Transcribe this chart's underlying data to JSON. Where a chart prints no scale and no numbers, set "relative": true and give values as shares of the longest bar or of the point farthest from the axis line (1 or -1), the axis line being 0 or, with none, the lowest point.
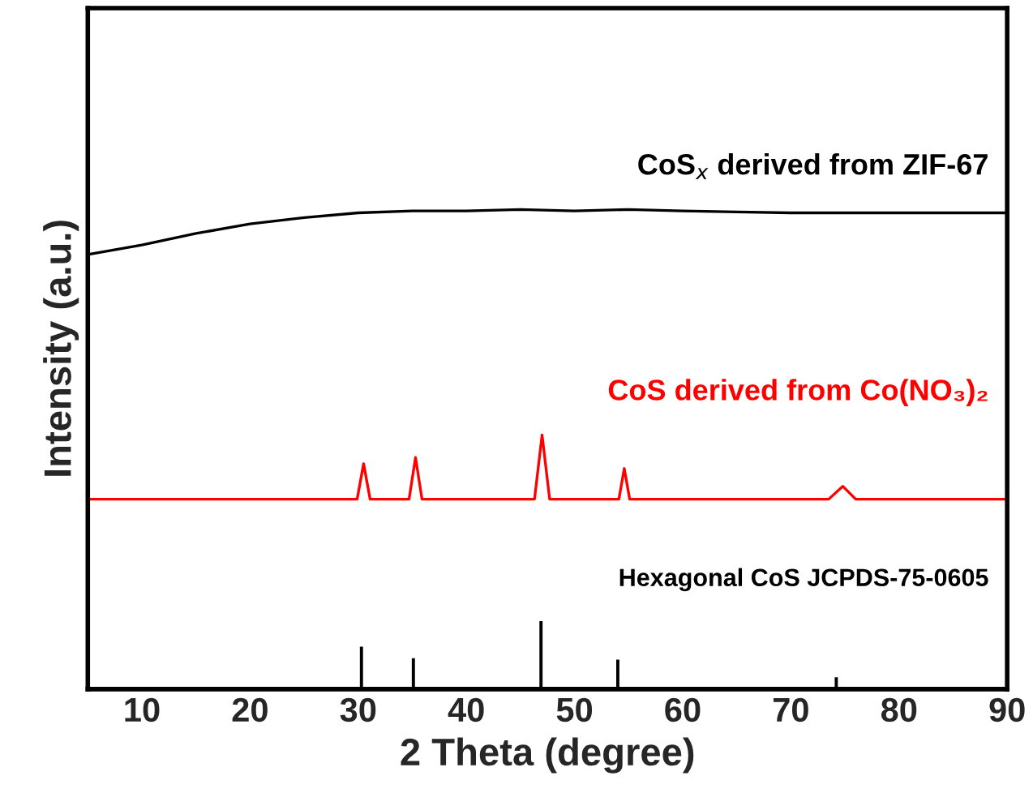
{
  "chart_data": {
    "type": "line",
    "relative": true,
    "xlabel": "2 Theta (degree)",
    "ylabel": "Intensity (a.u.)",
    "xlim": [
      5,
      90
    ],
    "xticks": [
      10,
      20,
      30,
      40,
      50,
      60,
      70,
      80,
      90
    ],
    "legend": false,
    "grid": false,
    "series": [
      {
        "name": "CoS$_{x}$ derived from ZIF-67",
        "color": "#000000",
        "x": [
          5,
          10,
          15,
          20,
          25,
          30,
          35,
          40,
          45,
          50,
          55,
          60,
          65,
          70,
          75,
          80,
          85,
          90
        ],
        "values": [
          0.906,
          0.926,
          0.95,
          0.97,
          0.983,
          0.993,
          0.997,
          0.997,
          1,
          0.997,
          1,
          0.997,
          0.995,
          0.993,
          0.993,
          0.993,
          0.993,
          0.993
        ]
      },
      {
        "name": "CoS derived from Co(NO₃)₂",
        "color": "#ff0000",
        "x": [
          5,
          15,
          25,
          29.9,
          30.5,
          31.1,
          34.7,
          35.3,
          35.9,
          46.3,
          47,
          47.7,
          54.1,
          54.6,
          55.1,
          73.5,
          74.8,
          76,
          90
        ],
        "values": [
          0.396,
          0.396,
          0.396,
          0.396,
          0.47,
          0.396,
          0.396,
          0.483,
          0.396,
          0.396,
          0.53,
          0.396,
          0.396,
          0.46,
          0.396,
          0.396,
          0.423,
          0.396,
          0.396
        ]
      },
      {
        "name": "Hexagonal CoS JCPDS-75-0605",
        "type": "bar",
        "color": "#000000",
        "x": [
          30.3,
          35.1,
          46.9,
          54.0,
          62.5,
          63.3,
          66.1,
          74.2
        ],
        "values": [
          0.091,
          0.067,
          0.144,
          0.064,
          0.005,
          0.005,
          0.005,
          0.027
        ]
      }
    ]
  }
}
